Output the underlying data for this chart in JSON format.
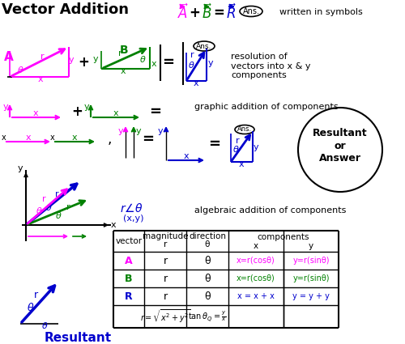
{
  "title": "Vector Addition",
  "bg_color": "#ffffff",
  "magenta": "#ff00ff",
  "green": "#008000",
  "blue": "#0000cd",
  "black": "#000000",
  "figsize": [
    5.0,
    4.25
  ],
  "dpi": 100,
  "xlim": [
    0,
    500
  ],
  "ylim": [
    425,
    0
  ]
}
